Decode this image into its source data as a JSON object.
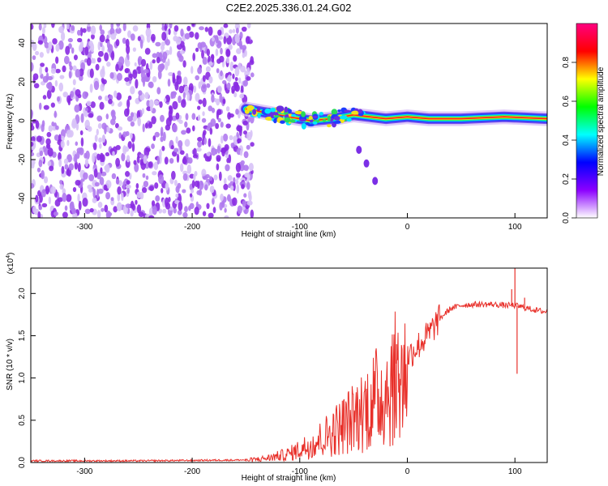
{
  "figure": {
    "title": "C2E2.2025.336.01.24.G02"
  },
  "chart_data": [
    {
      "id": "spectrogram",
      "type": "heatmap",
      "title": "C2E2.2025.336.01.24.G02",
      "xlabel": "Height of straight line (km)",
      "ylabel": "Frequency (Hz)",
      "xlim": [
        -350,
        130
      ],
      "ylim": [
        -50,
        50
      ],
      "xticks": [
        -300,
        -200,
        -100,
        0,
        100
      ],
      "yticks": [
        -40,
        -20,
        0,
        20,
        40
      ],
      "noise_region_x": [
        -350,
        -150
      ],
      "signal_track": [
        {
          "x": -150,
          "y": 6
        },
        {
          "x": -130,
          "y": 4
        },
        {
          "x": -110,
          "y": 2
        },
        {
          "x": -90,
          "y": 0
        },
        {
          "x": -70,
          "y": 1
        },
        {
          "x": -50,
          "y": 3
        },
        {
          "x": -35,
          "y": 2
        },
        {
          "x": -20,
          "y": 1
        },
        {
          "x": 0,
          "y": 2
        },
        {
          "x": 20,
          "y": 1
        },
        {
          "x": 50,
          "y": 1
        },
        {
          "x": 90,
          "y": 2
        },
        {
          "x": 130,
          "y": 1
        }
      ],
      "secondary_branch": [
        {
          "x": -45,
          "y": -15
        },
        {
          "x": -38,
          "y": -22
        },
        {
          "x": -30,
          "y": -31
        }
      ],
      "colorbar": {
        "label": "Normalized spectral amplitude",
        "range": [
          0,
          1
        ],
        "ticks": [
          "0.0",
          "0.2",
          "0.4",
          "0.6",
          "0.8"
        ],
        "colors": [
          "#ffffff",
          "#8b00ff",
          "#0000ff",
          "#00ffff",
          "#00ff00",
          "#ffff00",
          "#ff0000",
          "#ff0080"
        ]
      }
    },
    {
      "id": "snr",
      "type": "line",
      "xlabel": "Height of straight line (km)",
      "ylabel": "SNR (10 * v/v)",
      "yscale_label": "(x10",
      "yscale_exp": "4",
      "yscale_close": ")",
      "xlim": [
        -350,
        130
      ],
      "ylim": [
        0,
        2.3
      ],
      "xticks": [
        -300,
        -200,
        -100,
        0,
        100
      ],
      "yticks": [
        "0.0",
        "0.5",
        "1.0",
        "1.5",
        "2.0"
      ],
      "series": [
        {
          "name": "SNR",
          "color": "#e8302a",
          "x": [
            -350,
            -250,
            -150,
            -130,
            -110,
            -100,
            -90,
            -80,
            -70,
            -60,
            -50,
            -40,
            -30,
            -20,
            -12,
            -5,
            0,
            10,
            20,
            30,
            40,
            50,
            60,
            70,
            80,
            90,
            100,
            110,
            120,
            130
          ],
          "y": [
            0.02,
            0.02,
            0.03,
            0.06,
            0.12,
            0.18,
            0.25,
            0.33,
            0.42,
            0.52,
            0.62,
            0.75,
            0.88,
            1.0,
            1.15,
            1.22,
            1.25,
            1.38,
            1.52,
            1.7,
            1.82,
            1.86,
            1.87,
            1.87,
            1.87,
            1.86,
            1.86,
            1.83,
            1.8,
            1.78
          ]
        }
      ],
      "spikes": [
        {
          "x": -10,
          "y": 1.4
        },
        {
          "x": 97,
          "y": 2.05
        },
        {
          "x": 100,
          "y": 2.3
        },
        {
          "x": 102,
          "y": 1.05
        },
        {
          "x": 109,
          "y": 1.95
        }
      ]
    }
  ]
}
